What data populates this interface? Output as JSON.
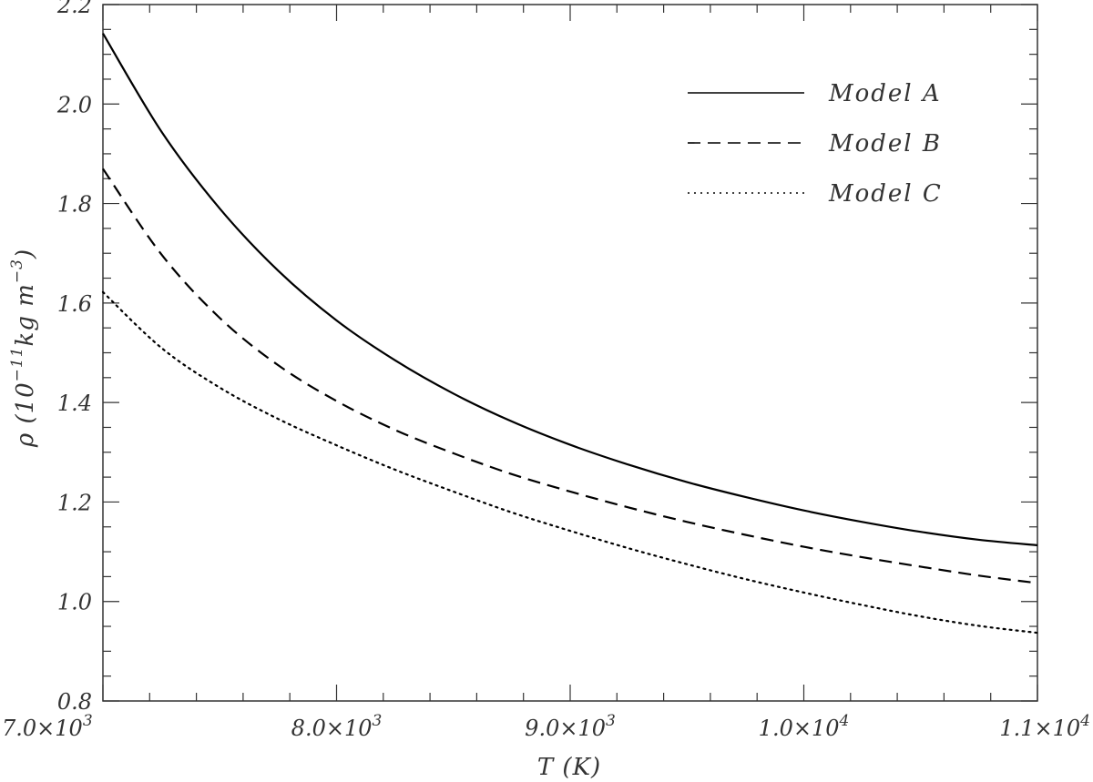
{
  "chart_data": {
    "type": "line",
    "title": "",
    "xlabel": "T (K)",
    "ylabel": {
      "symbol": "ρ",
      "open": " (10",
      "exp1": "−11",
      "mid": "kg m",
      "exp2": "−3",
      "close": ")"
    },
    "xlim": [
      7000,
      11000
    ],
    "ylim": [
      0.8,
      2.2
    ],
    "x_ticks": [
      {
        "value": 7000,
        "mantissa": "7.0",
        "times": "×10",
        "exp": "3"
      },
      {
        "value": 8000,
        "mantissa": "8.0",
        "times": "×10",
        "exp": "3"
      },
      {
        "value": 9000,
        "mantissa": "9.0",
        "times": "×10",
        "exp": "3"
      },
      {
        "value": 10000,
        "mantissa": "1.0",
        "times": "×10",
        "exp": "4"
      },
      {
        "value": 11000,
        "mantissa": "1.1",
        "times": "×10",
        "exp": "4"
      }
    ],
    "y_ticks": [
      {
        "value": 0.8,
        "label": "0.8"
      },
      {
        "value": 1.0,
        "label": "1.0"
      },
      {
        "value": 1.2,
        "label": "1.2"
      },
      {
        "value": 1.4,
        "label": "1.4"
      },
      {
        "value": 1.6,
        "label": "1.6"
      },
      {
        "value": 1.8,
        "label": "1.8"
      },
      {
        "value": 2.0,
        "label": "2.0"
      },
      {
        "value": 2.2,
        "label": "2.2"
      }
    ],
    "grid": false,
    "legend_position": "top-right",
    "series": [
      {
        "name": "Model A",
        "style": "solid",
        "color": "#000000",
        "x": [
          7000,
          7250,
          7500,
          7750,
          8000,
          8250,
          8500,
          8750,
          9000,
          9250,
          9500,
          9750,
          10000,
          10250,
          10500,
          10750,
          11000
        ],
        "y": [
          2.142,
          1.945,
          1.79,
          1.665,
          1.565,
          1.485,
          1.418,
          1.362,
          1.315,
          1.275,
          1.24,
          1.21,
          1.183,
          1.16,
          1.14,
          1.124,
          1.113
        ]
      },
      {
        "name": "Model B",
        "style": "dashed",
        "color": "#000000",
        "x": [
          7000,
          7250,
          7500,
          7750,
          8000,
          8250,
          8500,
          8750,
          9000,
          9250,
          9500,
          9750,
          10000,
          10250,
          10500,
          10750,
          11000
        ],
        "y": [
          1.87,
          1.698,
          1.57,
          1.475,
          1.403,
          1.345,
          1.298,
          1.256,
          1.221,
          1.189,
          1.16,
          1.134,
          1.11,
          1.089,
          1.07,
          1.052,
          1.037
        ]
      },
      {
        "name": "Model C",
        "style": "dotted",
        "color": "#000000",
        "x": [
          7000,
          7250,
          7500,
          7750,
          8000,
          8250,
          8500,
          8750,
          9000,
          9250,
          9500,
          9750,
          10000,
          10250,
          10500,
          10750,
          11000
        ],
        "y": [
          1.622,
          1.51,
          1.43,
          1.367,
          1.314,
          1.265,
          1.221,
          1.179,
          1.142,
          1.107,
          1.075,
          1.045,
          1.018,
          0.993,
          0.97,
          0.951,
          0.937
        ]
      }
    ]
  }
}
